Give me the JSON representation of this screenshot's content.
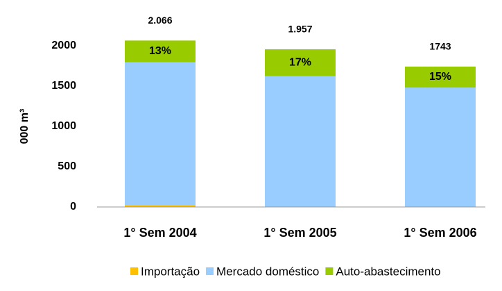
{
  "chart_data": {
    "type": "stacked_bar",
    "ylabel": "000 m³",
    "categories": [
      "1° Sem 2004",
      "1° Sem 2005",
      "1° Sem 2006"
    ],
    "series": [
      {
        "name": "Importação",
        "color": "#ffc000",
        "values": [
          25,
          0,
          0
        ]
      },
      {
        "name": "Mercado doméstico",
        "color": "#99ccff",
        "values": [
          1772,
          1624,
          1482
        ]
      },
      {
        "name": "Auto-abastecimento",
        "color": "#99cc00",
        "values": [
          269,
          333,
          261
        ]
      }
    ],
    "share_labels": {
      "series": 2,
      "values": [
        13,
        17,
        15
      ],
      "labels": [
        "13%",
        "17%",
        "15%"
      ]
    },
    "total_labels": {
      "values": [
        2066,
        1957,
        1743
      ],
      "labels": [
        "2.066",
        "1.957",
        "1743"
      ]
    },
    "ylim": [
      0,
      2000
    ],
    "yticks": [
      0,
      500,
      1000,
      1500,
      2000
    ],
    "grid": false
  }
}
